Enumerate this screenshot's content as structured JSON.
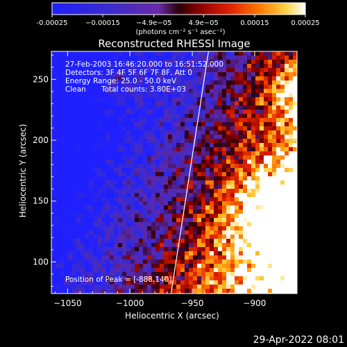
{
  "chart_data": {
    "type": "heatmap",
    "title": "Reconstructed RHESSI Image",
    "xlabel": "Heliocentric X (arcsec)",
    "ylabel": "Heliocentric Y (arcsec)",
    "xlim": [
      -1063,
      -866
    ],
    "ylim": [
      74,
      273
    ],
    "x_ticks": [
      -1050,
      -1000,
      -950,
      -900
    ],
    "x_tick_labels": [
      "−1050",
      "−1000",
      "−950",
      "−900"
    ],
    "y_ticks": [
      100,
      150,
      200,
      250
    ],
    "y_tick_labels": [
      "100",
      "150",
      "200",
      "250"
    ],
    "colormap": "red-temperature with blue-to-purple negative range",
    "limb_line": {
      "x": [
        -967,
        -937
      ],
      "y": [
        74,
        273
      ]
    },
    "peak": [
      -888,
      140
    ],
    "colorbar": {
      "range": [
        -0.00025,
        0.00025
      ],
      "ticks": [
        -0.00025,
        -0.00015,
        -4.9e-05,
        4.9e-05,
        0.00015,
        0.00025
      ],
      "tick_labels": [
        "-0.00025",
        "−0.00015",
        "−4.9e−05",
        "4.9e−05",
        "0.00015",
        "0.00025"
      ],
      "units_label": "(photons cm⁻² s⁻¹ asec⁻²)"
    },
    "annotations": {
      "time_range": "27-Feb-2003 16:46:20.000 to 16:51:52.000",
      "detectors": "Detectors: 3F 4F 5F 6F 7F 8F, Att 0",
      "energy_range": "Energy Range: 25.0 - 50.0 keV",
      "clean_label": "Clean",
      "total_counts": "Total counts: 3.80E+03",
      "peak_position": "Position of Peak = [-888,140]"
    },
    "timestamp": "29-Apr-2022 08:01"
  }
}
